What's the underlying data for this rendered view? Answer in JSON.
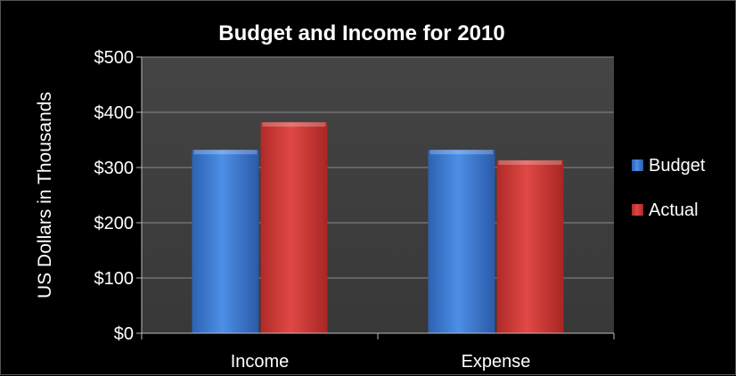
{
  "chart_data": {
    "type": "bar",
    "title": "Budget and Income for 2010",
    "xlabel": "",
    "ylabel": "US Dollars in Thousands",
    "categories": [
      "Income",
      "Expense"
    ],
    "series": [
      {
        "name": "Budget",
        "values": [
          332,
          332
        ],
        "color": "#3f7fd9"
      },
      {
        "name": "Actual",
        "values": [
          382,
          313
        ],
        "color": "#d63c3a"
      }
    ],
    "ylim": [
      0,
      500
    ],
    "yticks": [
      {
        "value": 0,
        "label": "$0"
      },
      {
        "value": 100,
        "label": "$100"
      },
      {
        "value": 200,
        "label": "$200"
      },
      {
        "value": 300,
        "label": "$300"
      },
      {
        "value": 400,
        "label": "$400"
      },
      {
        "value": 500,
        "label": "$500"
      }
    ],
    "grid": true,
    "legend": "right",
    "colors": {
      "page_background": "#000000",
      "plot_background": "#3c3c3c",
      "gridline": "#8a8a8a",
      "text": "#ffffff"
    }
  }
}
